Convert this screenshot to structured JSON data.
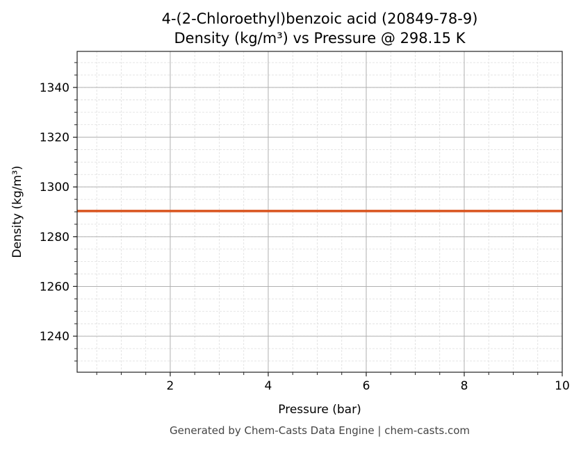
{
  "chart_data": {
    "type": "line",
    "title": "4-(2-Chloroethyl)benzoic acid (20849-78-9)",
    "subtitle": "Density (kg/m³) vs Pressure @ 298.15 K",
    "xlabel": "Pressure (bar)",
    "ylabel": "Density (kg/m³)",
    "xlim": [
      0.1,
      10
    ],
    "ylim": [
      1225.5,
      1354.5
    ],
    "xticks": [
      2,
      4,
      6,
      8,
      10
    ],
    "yticks": [
      1240,
      1260,
      1280,
      1300,
      1320,
      1340
    ],
    "x_minor_step": 0.5,
    "y_minor_step": 5,
    "grid": true,
    "series": [
      {
        "x": [
          0.1,
          10
        ],
        "y": [
          1290.3,
          1290.3
        ],
        "color": "#d9541e"
      }
    ]
  },
  "footer": "Generated by Chem-Casts Data Engine | chem-casts.com"
}
